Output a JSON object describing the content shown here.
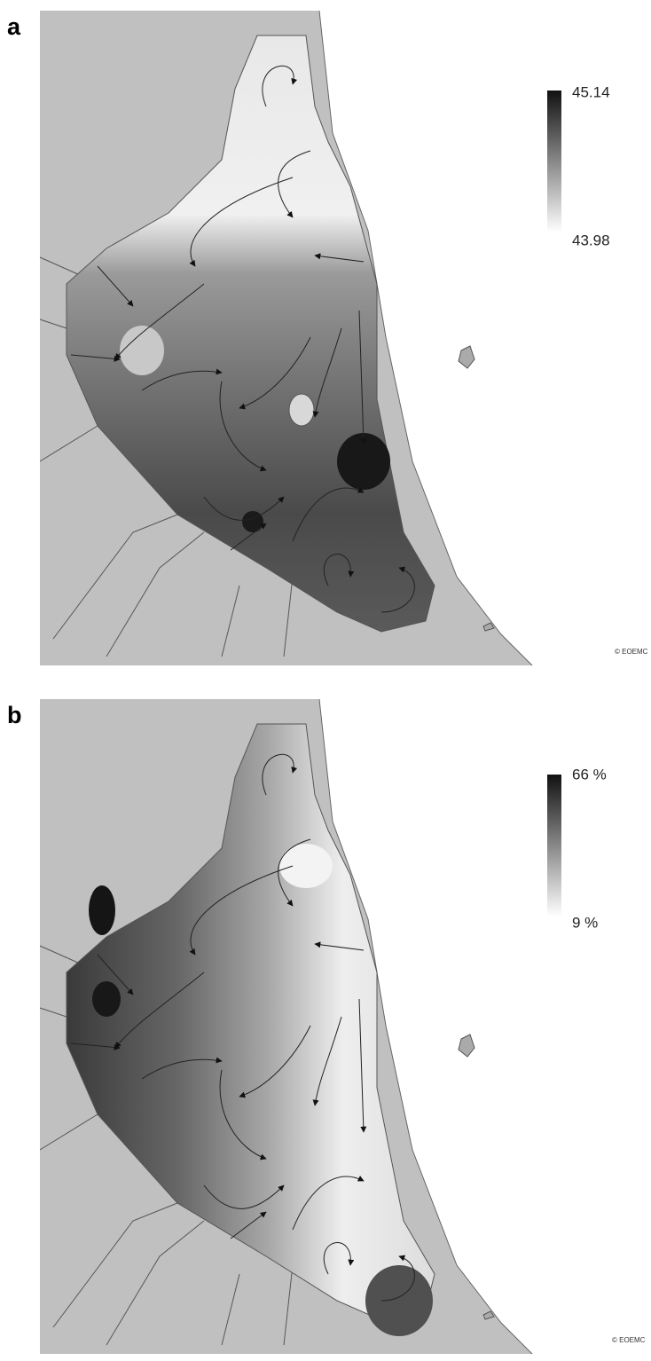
{
  "panels": [
    {
      "label": "a",
      "legend_max": "45.14",
      "legend_min": "43.98",
      "credit": "© EOEMC"
    },
    {
      "label": "b",
      "legend_max": "66 %",
      "legend_min": "9 %",
      "credit": "© EOEMC"
    }
  ]
}
